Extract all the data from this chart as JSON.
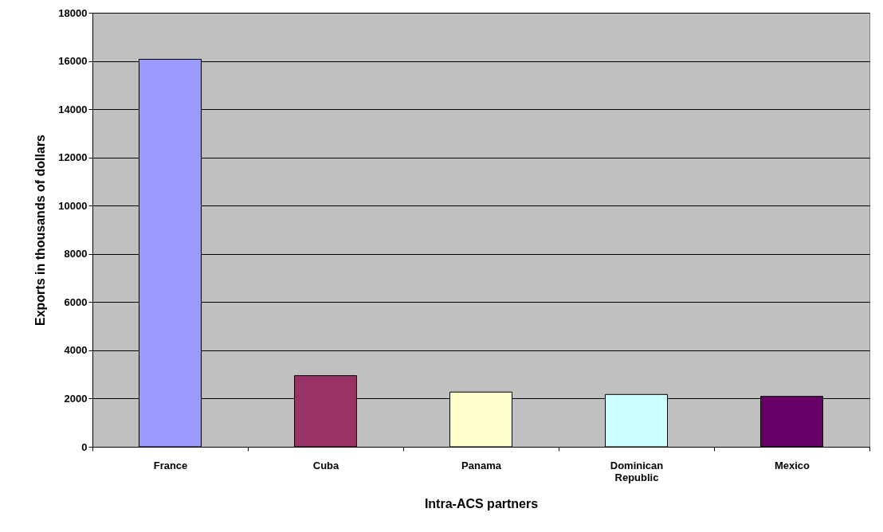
{
  "chart_data": {
    "type": "bar",
    "xlabel": "Intra-ACS partners",
    "ylabel": "Exports in thousands of dollars",
    "categories": [
      "France",
      "Cuba",
      "Panama",
      "Dominican Republic",
      "Mexico"
    ],
    "values": [
      16070,
      2950,
      2270,
      2170,
      2090
    ],
    "colors": [
      "#9999ff",
      "#993366",
      "#ffffcc",
      "#ccffff",
      "#660066"
    ],
    "ylim": [
      0,
      18000
    ],
    "yticks": [
      0,
      2000,
      4000,
      6000,
      8000,
      10000,
      12000,
      14000,
      16000,
      18000
    ],
    "grid": "y"
  }
}
